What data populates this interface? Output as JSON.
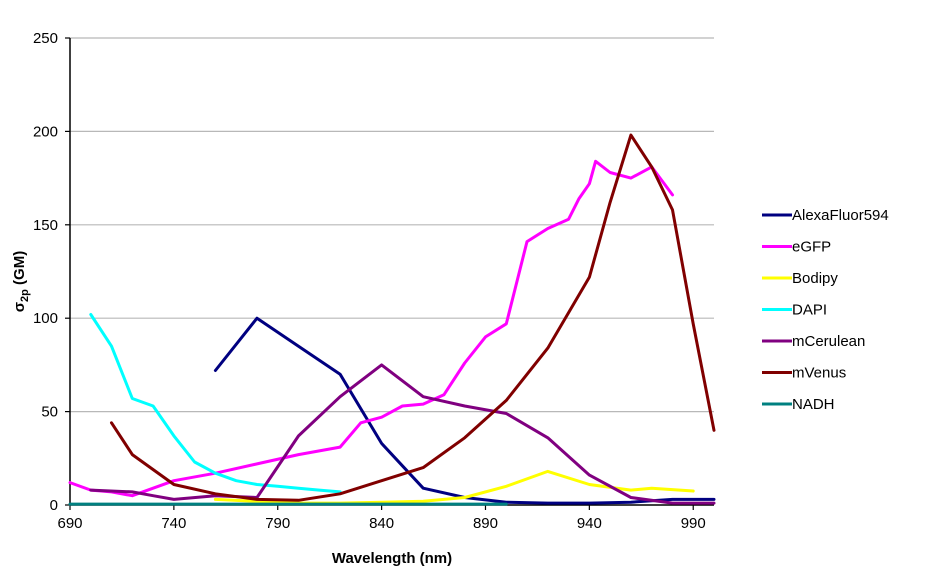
{
  "chart_data": {
    "type": "line",
    "title": "",
    "xlabel": "Wavelength (nm)",
    "ylabel_main": "σ",
    "ylabel_sub": "2p",
    "ylabel_unit": " (GM)",
    "xlim": [
      690,
      1000
    ],
    "ylim": [
      0,
      250
    ],
    "x_ticks": [
      690,
      740,
      790,
      840,
      890,
      940,
      990
    ],
    "y_ticks": [
      0,
      50,
      100,
      150,
      200,
      250
    ],
    "grid": "horizontal",
    "legend_position": "right",
    "series": [
      {
        "name": "AlexaFluor594",
        "color": "#000080",
        "points": [
          [
            760,
            72
          ],
          [
            780,
            100
          ],
          [
            800,
            85
          ],
          [
            820,
            70
          ],
          [
            840,
            33
          ],
          [
            860,
            9
          ],
          [
            880,
            4
          ],
          [
            900,
            1.5
          ],
          [
            920,
            1
          ],
          [
            940,
            1
          ],
          [
            960,
            1.5
          ],
          [
            980,
            3
          ],
          [
            1000,
            3
          ]
        ]
      },
      {
        "name": "eGFP",
        "color": "#ff00ff",
        "points": [
          [
            690,
            12
          ],
          [
            700,
            8
          ],
          [
            710,
            7
          ],
          [
            720,
            5
          ],
          [
            730,
            9
          ],
          [
            740,
            13
          ],
          [
            760,
            17
          ],
          [
            780,
            22
          ],
          [
            800,
            27
          ],
          [
            820,
            31
          ],
          [
            830,
            44
          ],
          [
            840,
            47
          ],
          [
            850,
            53
          ],
          [
            860,
            54
          ],
          [
            870,
            59
          ],
          [
            880,
            76
          ],
          [
            890,
            90
          ],
          [
            900,
            97
          ],
          [
            910,
            141
          ],
          [
            920,
            148
          ],
          [
            930,
            153
          ],
          [
            935,
            164
          ],
          [
            940,
            172
          ],
          [
            943,
            184
          ],
          [
            950,
            178
          ],
          [
            960,
            175
          ],
          [
            970,
            181
          ],
          [
            980,
            166
          ]
        ]
      },
      {
        "name": "Bodipy",
        "color": "#ffff00",
        "points": [
          [
            760,
            3
          ],
          [
            780,
            2
          ],
          [
            800,
            1
          ],
          [
            820,
            1
          ],
          [
            840,
            1.5
          ],
          [
            860,
            2
          ],
          [
            880,
            4
          ],
          [
            900,
            10
          ],
          [
            920,
            18
          ],
          [
            940,
            11
          ],
          [
            960,
            8
          ],
          [
            970,
            9
          ],
          [
            990,
            7.5
          ]
        ]
      },
      {
        "name": "DAPI",
        "color": "#00ffff",
        "points": [
          [
            700,
            102
          ],
          [
            710,
            85
          ],
          [
            720,
            57
          ],
          [
            730,
            53
          ],
          [
            740,
            37
          ],
          [
            750,
            23
          ],
          [
            760,
            17
          ],
          [
            770,
            13
          ],
          [
            780,
            11
          ],
          [
            790,
            10
          ],
          [
            800,
            9
          ],
          [
            810,
            8
          ],
          [
            820,
            7
          ]
        ]
      },
      {
        "name": "mCerulean",
        "color": "#800080",
        "points": [
          [
            700,
            8
          ],
          [
            720,
            7
          ],
          [
            730,
            5
          ],
          [
            740,
            3
          ],
          [
            760,
            5
          ],
          [
            780,
            4
          ],
          [
            800,
            37
          ],
          [
            820,
            58
          ],
          [
            840,
            75
          ],
          [
            860,
            58
          ],
          [
            880,
            53
          ],
          [
            900,
            49
          ],
          [
            920,
            36
          ],
          [
            940,
            16
          ],
          [
            960,
            4
          ],
          [
            980,
            1
          ],
          [
            1000,
            1
          ]
        ]
      },
      {
        "name": "mVenus",
        "color": "#800000",
        "points": [
          [
            710,
            44
          ],
          [
            720,
            27
          ],
          [
            740,
            11
          ],
          [
            760,
            6
          ],
          [
            780,
            3
          ],
          [
            800,
            2.5
          ],
          [
            820,
            6
          ],
          [
            840,
            13
          ],
          [
            860,
            20
          ],
          [
            880,
            36
          ],
          [
            900,
            56
          ],
          [
            920,
            84
          ],
          [
            940,
            122
          ],
          [
            950,
            162
          ],
          [
            960,
            198
          ],
          [
            970,
            181
          ],
          [
            980,
            158
          ],
          [
            990,
            97
          ],
          [
            1000,
            40
          ]
        ]
      },
      {
        "name": "NADH",
        "color": "#008080",
        "points": [
          [
            690,
            0.5
          ],
          [
            740,
            0.5
          ],
          [
            790,
            0.5
          ],
          [
            840,
            0.5
          ],
          [
            900,
            0.5
          ]
        ]
      }
    ]
  }
}
